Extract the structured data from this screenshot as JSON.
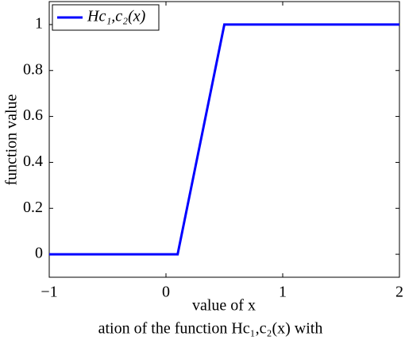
{
  "chart_data": {
    "type": "line",
    "x": [
      -1,
      0.1,
      0.5,
      2
    ],
    "series": [
      {
        "name": "Hc₁,c₂(x)",
        "color": "#0000ff",
        "values": [
          0,
          0,
          1,
          1
        ]
      }
    ],
    "xlim": [
      -1,
      2
    ],
    "xticks": [
      {
        "value": -1,
        "label": "−1"
      },
      0,
      1,
      2
    ],
    "ylim": [
      -0.1,
      1.1
    ],
    "yticks": [
      0,
      0.2,
      0.4,
      0.6,
      0.8,
      1
    ],
    "xlabel": "value of x",
    "ylabel": "function value",
    "legend": "upper left",
    "caption": "ation of the function Hc₁,c₂(x) with"
  }
}
